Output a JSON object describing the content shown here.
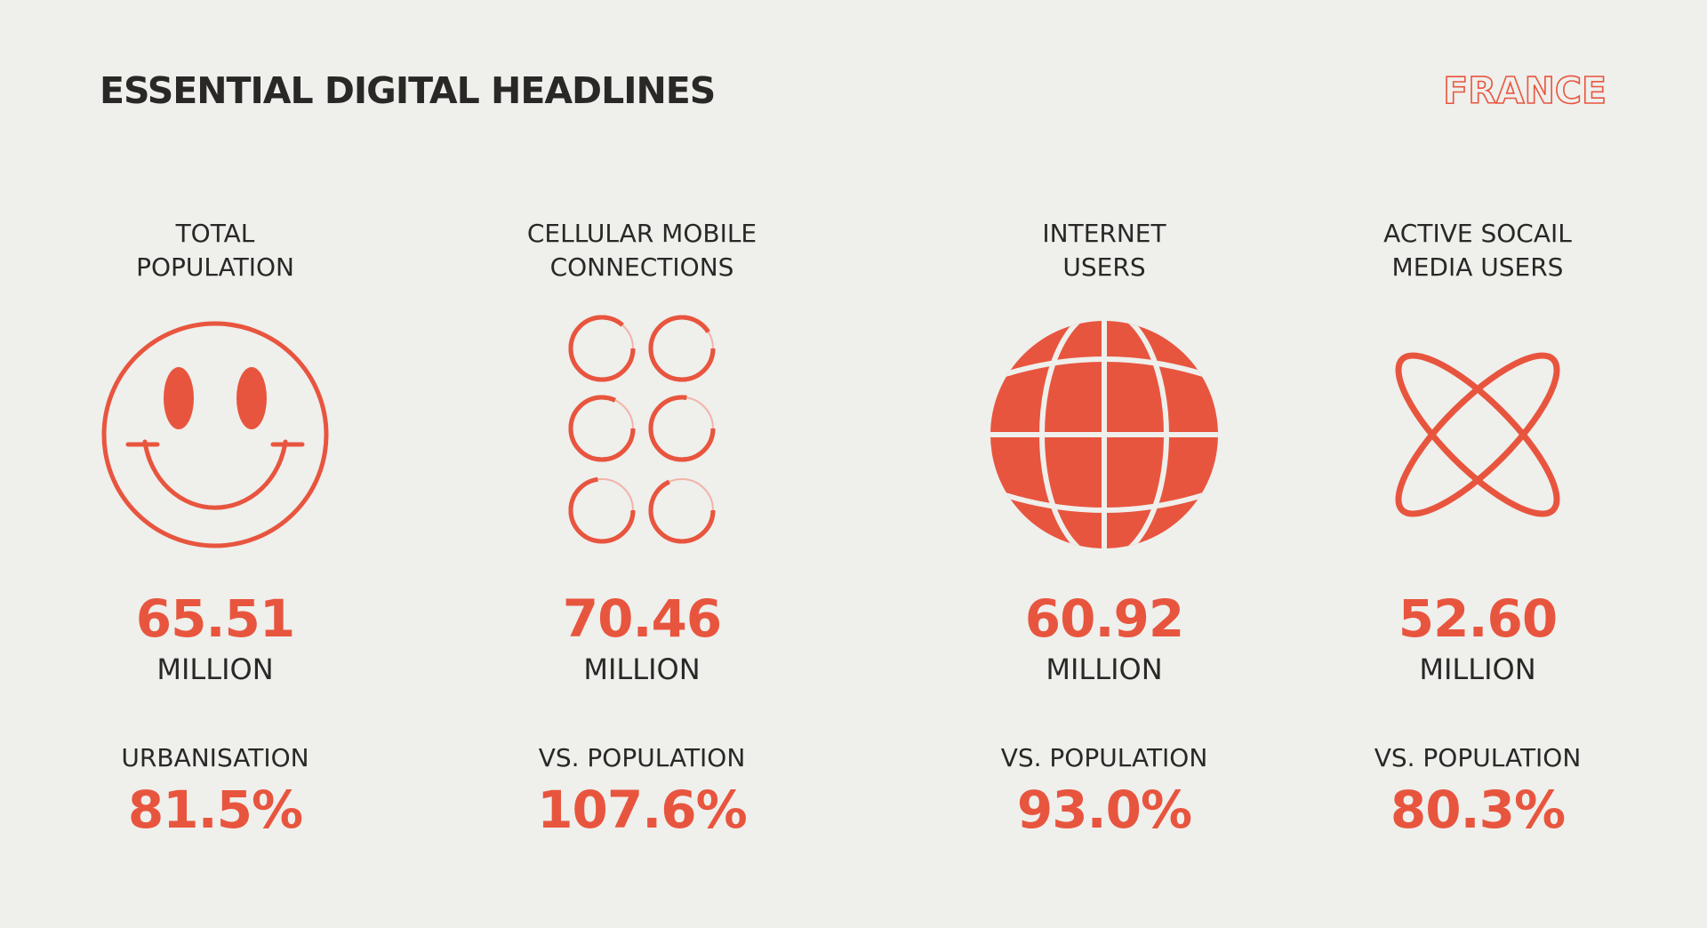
{
  "header": {
    "title": "ESSENTIAL DIGITAL HEADLINES",
    "country": "FRANCE"
  },
  "colors": {
    "accent": "#e8553e",
    "text": "#2a2826",
    "background": "#efefec"
  },
  "stats": [
    {
      "label_line1": "TOTAL",
      "label_line2": "POPULATION",
      "icon": "smiley-face-icon",
      "value": "65.51",
      "unit": "MILLION",
      "sublabel": "URBANISATION",
      "subvalue": "81.5%"
    },
    {
      "label_line1": "CELLULAR MOBILE",
      "label_line2": "CONNECTIONS",
      "icon": "six-circles-icon",
      "value": "70.46",
      "unit": "MILLION",
      "sublabel": "VS. POPULATION",
      "subvalue": "107.6%"
    },
    {
      "label_line1": "INTERNET",
      "label_line2": "USERS",
      "icon": "globe-icon",
      "value": "60.92",
      "unit": "MILLION",
      "sublabel": "VS. POPULATION",
      "subvalue": "93.0%"
    },
    {
      "label_line1": "ACTIVE SOCAIL",
      "label_line2": "MEDIA USERS",
      "icon": "crossed-orbits-icon",
      "value": "52.60",
      "unit": "MILLION",
      "sublabel": "VS. POPULATION",
      "subvalue": "80.3%"
    }
  ]
}
